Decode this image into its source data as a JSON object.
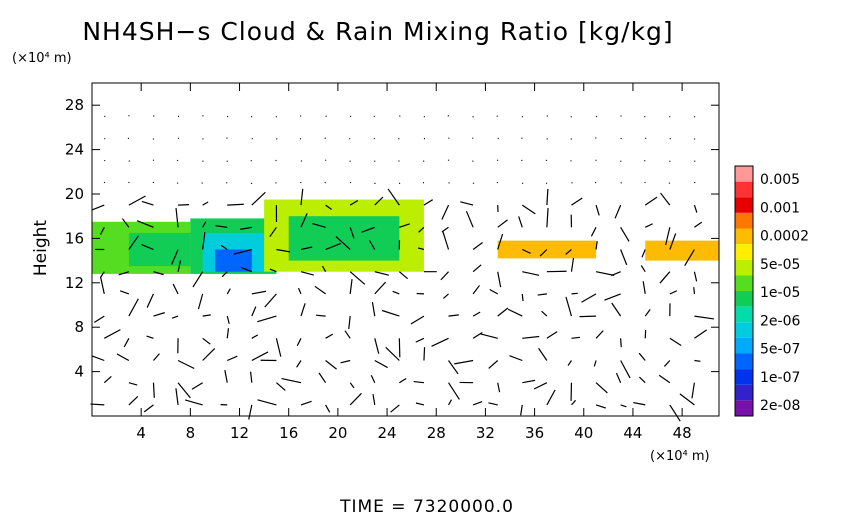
{
  "chart_data": {
    "type": "heatmap",
    "title": "NH4SH−s Cloud & Rain Mixing Ratio [kg/kg]",
    "ylabel": "Height",
    "y_unit": "(×10⁴ m)",
    "x_unit": "(×10⁴ m)",
    "xlim": [
      0,
      51
    ],
    "ylim": [
      0,
      30
    ],
    "x_ticks": [
      4,
      8,
      12,
      16,
      20,
      24,
      28,
      32,
      36,
      40,
      44,
      48
    ],
    "y_ticks": [
      4,
      8,
      12,
      16,
      20,
      24,
      28
    ],
    "colorbar": {
      "labels": [
        "0.005",
        "0.001",
        "0.0002",
        "5e-05",
        "1e-05",
        "2e-06",
        "5e-07",
        "1e-07",
        "2e-08"
      ],
      "colors": [
        "#ff9999",
        "#ff3333",
        "#e60000",
        "#ff7700",
        "#ffbb00",
        "#ffee00",
        "#bbee00",
        "#55dd22",
        "#11cc55",
        "#00ddaa",
        "#00ccdd",
        "#00aaff",
        "#0066ff",
        "#0033ee",
        "#3322cc",
        "#7711aa"
      ]
    },
    "regions": [
      {
        "x": [
          0,
          8
        ],
        "y": [
          12.8,
          17.5
        ],
        "level": 8
      },
      {
        "x": [
          3,
          8
        ],
        "y": [
          13.5,
          16.5
        ],
        "level": 7
      },
      {
        "x": [
          8,
          15
        ],
        "y": [
          12.8,
          17.8
        ],
        "level": 7
      },
      {
        "x": [
          9,
          14
        ],
        "y": [
          13,
          16.5
        ],
        "level": 5
      },
      {
        "x": [
          10,
          13
        ],
        "y": [
          13,
          15
        ],
        "level": 3
      },
      {
        "x": [
          14,
          27
        ],
        "y": [
          13,
          19.5
        ],
        "level": 9
      },
      {
        "x": [
          16,
          25
        ],
        "y": [
          14,
          18
        ],
        "level": 7
      },
      {
        "x": [
          33,
          41
        ],
        "y": [
          14.2,
          15.8
        ],
        "level": 11
      },
      {
        "x": [
          45,
          51
        ],
        "y": [
          14,
          15.8
        ],
        "level": 11
      }
    ],
    "vector_field": "wind vectors overlaid on grid"
  },
  "time_label": "TIME  =  7320000.0"
}
